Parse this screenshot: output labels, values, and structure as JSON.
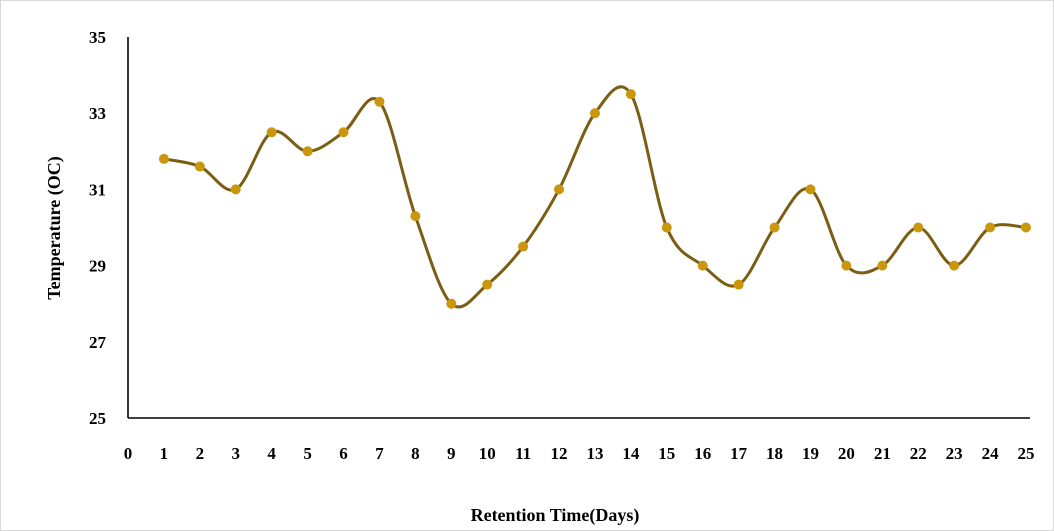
{
  "chart_data": {
    "type": "line",
    "title": "",
    "xlabel": "Retention Time(Days)",
    "ylabel": "Temperature (OC)",
    "xlim": [
      0,
      25
    ],
    "ylim": [
      25,
      35
    ],
    "x_ticks": [
      0,
      1,
      2,
      3,
      4,
      5,
      6,
      7,
      8,
      9,
      10,
      11,
      12,
      13,
      14,
      15,
      16,
      17,
      18,
      19,
      20,
      21,
      22,
      23,
      24,
      25
    ],
    "y_ticks": [
      25,
      27,
      29,
      31,
      33,
      35
    ],
    "grid": false,
    "legend": "none",
    "smooth": true,
    "line_color": "#7b5d13",
    "marker_color": "#c9960c",
    "series": [
      {
        "x": [
          1,
          2,
          3,
          4,
          5,
          6,
          7,
          8,
          9,
          10,
          11,
          12,
          13,
          14,
          15,
          16,
          17,
          18,
          19,
          20,
          21,
          22,
          23,
          24,
          25
        ],
        "values": [
          31.8,
          31.6,
          31.0,
          32.5,
          32.0,
          32.5,
          33.3,
          30.3,
          28.0,
          28.5,
          29.5,
          31.0,
          33.0,
          33.5,
          30.0,
          29.0,
          28.5,
          30.0,
          31.0,
          29.0,
          29.0,
          30.0,
          29.0,
          30.0,
          30.0
        ]
      }
    ]
  }
}
